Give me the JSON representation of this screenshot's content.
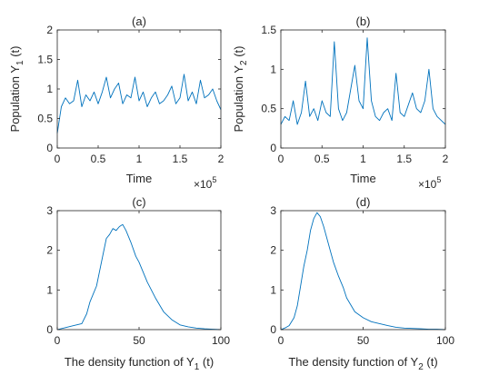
{
  "chart_data": [
    {
      "id": "a",
      "type": "line",
      "title": "(a)",
      "xlabel": "Time",
      "ylabel": "Population Y",
      "ylabel_sub": "1",
      "ylabel_suffix": " (t)",
      "x_multiplier": "×10",
      "x_multiplier_exp": "5",
      "xlim": [
        0,
        2
      ],
      "ylim": [
        0,
        2
      ],
      "xticks": [
        "0",
        "0.5",
        "1",
        "1.5",
        "2"
      ],
      "xtick_values": [
        0,
        0.5,
        1,
        1.5,
        2
      ],
      "yticks": [
        "0",
        "0.5",
        "1",
        "1.5",
        "2"
      ],
      "ytick_values": [
        0,
        0.5,
        1,
        1.5,
        2
      ],
      "color": "#0072BD",
      "series": [
        {
          "x": [
            0,
            0.05,
            0.1,
            0.15,
            0.2,
            0.25,
            0.3,
            0.35,
            0.4,
            0.45,
            0.5,
            0.55,
            0.6,
            0.65,
            0.7,
            0.75,
            0.8,
            0.85,
            0.9,
            0.95,
            1.0,
            1.05,
            1.1,
            1.15,
            1.2,
            1.25,
            1.3,
            1.35,
            1.4,
            1.45,
            1.5,
            1.55,
            1.6,
            1.65,
            1.7,
            1.75,
            1.8,
            1.85,
            1.9,
            1.95,
            2.0
          ],
          "y": [
            0.25,
            0.7,
            0.85,
            0.75,
            0.8,
            1.15,
            0.7,
            0.9,
            0.8,
            0.95,
            0.75,
            0.95,
            1.2,
            0.85,
            1.0,
            1.1,
            0.75,
            0.9,
            0.85,
            1.2,
            0.8,
            0.95,
            0.7,
            0.85,
            0.95,
            0.75,
            0.8,
            0.9,
            1.05,
            0.75,
            0.85,
            1.25,
            0.8,
            0.95,
            0.75,
            1.15,
            0.85,
            0.9,
            1.0,
            0.8,
            0.65
          ]
        }
      ]
    },
    {
      "id": "b",
      "type": "line",
      "title": "(b)",
      "xlabel": "Time",
      "ylabel": "Population Y",
      "ylabel_sub": "2",
      "ylabel_suffix": " (t)",
      "x_multiplier": "×10",
      "x_multiplier_exp": "5",
      "xlim": [
        0,
        2
      ],
      "ylim": [
        0,
        1.5
      ],
      "xticks": [
        "0",
        "0.5",
        "1",
        "1.5",
        "2"
      ],
      "xtick_values": [
        0,
        0.5,
        1,
        1.5,
        2
      ],
      "yticks": [
        "0",
        "0.5",
        "1",
        "1.5"
      ],
      "ytick_values": [
        0,
        0.5,
        1,
        1.5
      ],
      "color": "#0072BD",
      "series": [
        {
          "x": [
            0,
            0.05,
            0.1,
            0.15,
            0.2,
            0.25,
            0.3,
            0.35,
            0.4,
            0.45,
            0.5,
            0.55,
            0.6,
            0.65,
            0.7,
            0.75,
            0.8,
            0.85,
            0.9,
            0.95,
            1.0,
            1.05,
            1.1,
            1.15,
            1.2,
            1.25,
            1.3,
            1.35,
            1.4,
            1.45,
            1.5,
            1.55,
            1.6,
            1.65,
            1.7,
            1.75,
            1.8,
            1.85,
            1.9,
            1.95,
            2.0
          ],
          "y": [
            0.3,
            0.4,
            0.35,
            0.6,
            0.3,
            0.45,
            0.85,
            0.4,
            0.5,
            0.35,
            0.6,
            0.45,
            0.4,
            1.35,
            0.5,
            0.35,
            0.45,
            0.75,
            1.05,
            0.6,
            0.5,
            1.4,
            0.6,
            0.4,
            0.35,
            0.45,
            0.5,
            0.35,
            0.95,
            0.45,
            0.4,
            0.55,
            0.7,
            0.5,
            0.45,
            0.6,
            1.0,
            0.5,
            0.4,
            0.35,
            0.3
          ]
        }
      ]
    },
    {
      "id": "c",
      "type": "line",
      "title": "(c)",
      "xlabel": "The density function of Y",
      "xlabel_sub": "1",
      "xlabel_suffix": " (t)",
      "xlim": [
        0,
        100
      ],
      "ylim": [
        0,
        3
      ],
      "xticks": [
        "0",
        "50",
        "100"
      ],
      "xtick_values": [
        0,
        50,
        100
      ],
      "yticks": [
        "0",
        "1",
        "2",
        "3"
      ],
      "ytick_values": [
        0,
        1,
        2,
        3
      ],
      "color": "#0072BD",
      "series": [
        {
          "x": [
            0,
            5,
            10,
            15,
            18,
            20,
            22,
            24,
            26,
            28,
            30,
            32,
            34,
            36,
            38,
            40,
            42,
            45,
            48,
            50,
            55,
            60,
            65,
            70,
            75,
            80,
            85,
            90,
            95,
            100
          ],
          "y": [
            0,
            0.05,
            0.1,
            0.15,
            0.4,
            0.7,
            0.9,
            1.1,
            1.5,
            1.9,
            2.3,
            2.4,
            2.55,
            2.5,
            2.6,
            2.65,
            2.5,
            2.2,
            1.85,
            1.7,
            1.2,
            0.8,
            0.45,
            0.25,
            0.12,
            0.07,
            0.04,
            0.02,
            0.01,
            0
          ]
        }
      ]
    },
    {
      "id": "d",
      "type": "line",
      "title": "(d)",
      "xlabel": "The density function of Y",
      "xlabel_sub": "2",
      "xlabel_suffix": " (t)",
      "xlim": [
        0,
        100
      ],
      "ylim": [
        0,
        3
      ],
      "xticks": [
        "0",
        "50",
        "100"
      ],
      "xtick_values": [
        0,
        50,
        100
      ],
      "yticks": [
        "0",
        "1",
        "2",
        "3"
      ],
      "ytick_values": [
        0,
        1,
        2,
        3
      ],
      "color": "#0072BD",
      "series": [
        {
          "x": [
            0,
            3,
            5,
            8,
            10,
            12,
            14,
            16,
            18,
            20,
            22,
            24,
            26,
            28,
            30,
            32,
            35,
            38,
            40,
            45,
            50,
            55,
            60,
            65,
            70,
            75,
            80,
            85,
            90,
            95,
            100
          ],
          "y": [
            0,
            0.05,
            0.1,
            0.3,
            0.6,
            1.1,
            1.6,
            2.0,
            2.5,
            2.8,
            2.95,
            2.85,
            2.6,
            2.3,
            2.0,
            1.7,
            1.35,
            1.05,
            0.8,
            0.45,
            0.3,
            0.2,
            0.15,
            0.1,
            0.06,
            0.04,
            0.03,
            0.02,
            0.01,
            0.01,
            0
          ]
        }
      ]
    }
  ]
}
